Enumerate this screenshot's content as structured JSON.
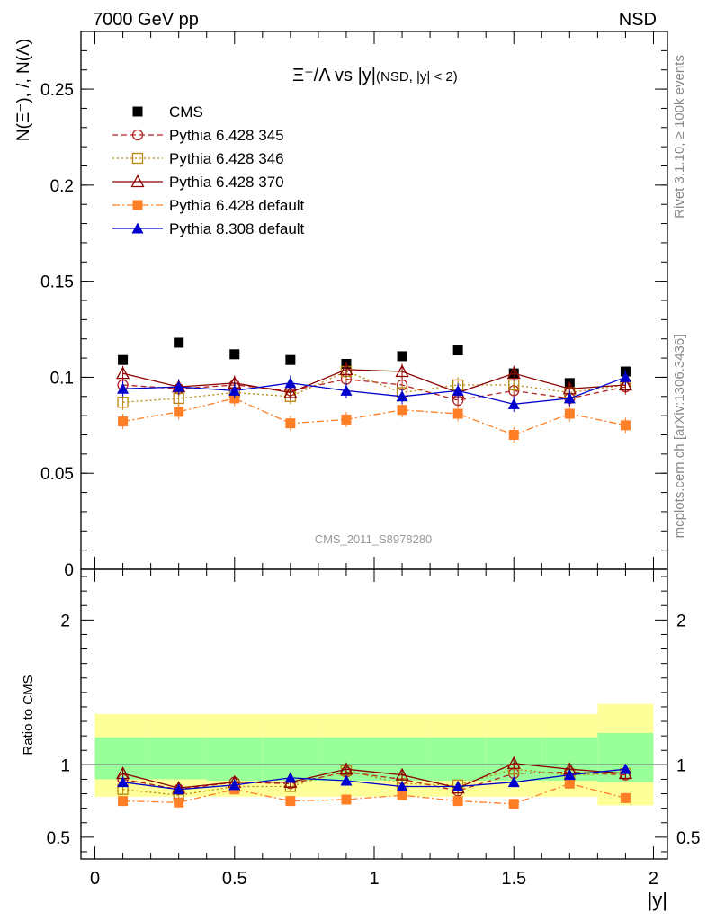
{
  "header": {
    "left": "7000 GeV pp",
    "right": "NSD"
  },
  "side_labels": {
    "rivet": "Rivet 3.1.10, ≥ 100k events",
    "mcplots": "mcplots.cern.ch [arXiv:1306.3436]"
  },
  "chart_data": [
    {
      "type": "scatter",
      "title_main": "Ξ⁻/Λ vs |y|",
      "title_sub": "(NSD, |y| < 2)",
      "ylabel": "N(Ξ⁻), /, N(Λ)",
      "watermark": "CMS_2011_S8978280",
      "xlim": [
        -0.05,
        2.05
      ],
      "ylim": [
        0,
        0.28
      ],
      "yticks": [
        0,
        0.05,
        0.1,
        0.15,
        0.2,
        0.25
      ],
      "ytick_labels": [
        "0",
        "0.05",
        "0.1",
        "0.15",
        "0.2",
        "0.25"
      ],
      "x": [
        0.1,
        0.3,
        0.5,
        0.7,
        0.9,
        1.1,
        1.3,
        1.5,
        1.7,
        1.9
      ],
      "series": [
        {
          "name": "CMS",
          "color": "#000000",
          "marker": "filled-square",
          "line": "none",
          "values": [
            0.109,
            0.118,
            0.112,
            0.109,
            0.107,
            0.111,
            0.114,
            0.102,
            0.097,
            0.103
          ],
          "err": [
            0,
            0,
            0,
            0,
            0,
            0,
            0,
            0,
            0,
            0
          ]
        },
        {
          "name": "Pythia 6.428 345",
          "color": "#b22222",
          "marker": "open-circle",
          "line": "dashed",
          "values": [
            0.096,
            0.094,
            0.096,
            0.093,
            0.099,
            0.096,
            0.088,
            0.093,
            0.089,
            0.095
          ],
          "err": [
            0.004,
            0.004,
            0.004,
            0.004,
            0.004,
            0.004,
            0.004,
            0.004,
            0.004,
            0.004
          ]
        },
        {
          "name": "Pythia 6.428 346",
          "color": "#b8860b",
          "marker": "open-square",
          "line": "dotted",
          "values": [
            0.087,
            0.089,
            0.092,
            0.09,
            0.103,
            0.092,
            0.096,
            0.096,
            0.092,
            0.096
          ],
          "err": [
            0.004,
            0.004,
            0.004,
            0.004,
            0.004,
            0.004,
            0.004,
            0.004,
            0.004,
            0.004
          ]
        },
        {
          "name": "Pythia 6.428 370",
          "color": "#8b0000",
          "marker": "open-triangle",
          "line": "solid",
          "values": [
            0.102,
            0.095,
            0.097,
            0.092,
            0.104,
            0.103,
            0.092,
            0.102,
            0.094,
            0.096
          ],
          "err": [
            0.004,
            0.004,
            0.004,
            0.004,
            0.004,
            0.004,
            0.004,
            0.004,
            0.004,
            0.004
          ]
        },
        {
          "name": "Pythia 6.428 default",
          "color": "#ff7f27",
          "marker": "filled-square",
          "line": "dashdot",
          "values": [
            0.077,
            0.082,
            0.089,
            0.076,
            0.078,
            0.083,
            0.081,
            0.07,
            0.081,
            0.075
          ],
          "err": [
            0.004,
            0.004,
            0.004,
            0.004,
            0.004,
            0.004,
            0.004,
            0.004,
            0.004,
            0.004
          ]
        },
        {
          "name": "Pythia 8.308 default",
          "color": "#0000cc",
          "marker": "filled-triangle",
          "line": "solid",
          "values": [
            0.094,
            0.095,
            0.093,
            0.097,
            0.093,
            0.09,
            0.093,
            0.086,
            0.089,
            0.1
          ],
          "err": [
            0.004,
            0.004,
            0.004,
            0.004,
            0.004,
            0.004,
            0.004,
            0.004,
            0.004,
            0.004
          ]
        }
      ]
    },
    {
      "type": "scatter",
      "ylabel": "Ratio to CMS",
      "xlabel": "|y|",
      "xlim": [
        -0.05,
        2.05
      ],
      "ylim": [
        0.35,
        2.35
      ],
      "xticks": [
        0,
        0.5,
        1,
        1.5,
        2
      ],
      "xtick_labels": [
        "0",
        "0.5",
        "1",
        "1.5",
        "2"
      ],
      "yticks": [
        0.5,
        1,
        2
      ],
      "ytick_labels": [
        "0.5",
        "1",
        "2"
      ],
      "reference_line": 1,
      "bands": {
        "bin_edges": [
          0.0,
          0.2,
          0.4,
          0.6,
          0.8,
          1.0,
          1.2,
          1.4,
          1.6,
          1.8,
          2.0
        ],
        "green_low": [
          0.9,
          0.9,
          0.89,
          0.89,
          0.89,
          0.89,
          0.89,
          0.89,
          0.89,
          0.88
        ],
        "green_high": [
          1.19,
          1.19,
          1.19,
          1.19,
          1.19,
          1.19,
          1.19,
          1.19,
          1.19,
          1.22
        ],
        "yellow_low": [
          0.78,
          0.78,
          0.78,
          0.78,
          0.78,
          0.78,
          0.78,
          0.78,
          0.78,
          0.72
        ],
        "yellow_high": [
          1.35,
          1.35,
          1.35,
          1.35,
          1.35,
          1.35,
          1.35,
          1.35,
          1.35,
          1.42
        ]
      },
      "x": [
        0.1,
        0.3,
        0.5,
        0.7,
        0.9,
        1.1,
        1.3,
        1.5,
        1.7,
        1.9
      ],
      "series": [
        {
          "name": "Pythia 6.428 345",
          "color": "#b22222",
          "marker": "open-circle",
          "line": "dashed",
          "values": [
            0.9,
            0.83,
            0.88,
            0.87,
            0.95,
            0.9,
            0.82,
            0.94,
            0.95,
            0.93
          ],
          "err": [
            0.035,
            0.035,
            0.035,
            0.035,
            0.035,
            0.035,
            0.035,
            0.035,
            0.035,
            0.035
          ]
        },
        {
          "name": "Pythia 6.428 346",
          "color": "#b8860b",
          "marker": "open-square",
          "line": "dotted",
          "values": [
            0.83,
            0.79,
            0.85,
            0.85,
            0.96,
            0.87,
            0.86,
            0.97,
            0.93,
            0.94
          ],
          "err": [
            0.035,
            0.035,
            0.035,
            0.035,
            0.035,
            0.035,
            0.035,
            0.035,
            0.035,
            0.035
          ]
        },
        {
          "name": "Pythia 6.428 370",
          "color": "#8b0000",
          "marker": "open-triangle",
          "line": "solid",
          "values": [
            0.94,
            0.84,
            0.88,
            0.88,
            0.97,
            0.93,
            0.84,
            1.01,
            0.97,
            0.94
          ],
          "err": [
            0.035,
            0.035,
            0.035,
            0.035,
            0.035,
            0.035,
            0.035,
            0.035,
            0.035,
            0.035
          ]
        },
        {
          "name": "Pythia 6.428 default",
          "color": "#ff7f27",
          "marker": "filled-square",
          "line": "dashdot",
          "values": [
            0.75,
            0.74,
            0.83,
            0.75,
            0.76,
            0.79,
            0.75,
            0.73,
            0.87,
            0.77
          ],
          "err": [
            0.035,
            0.035,
            0.035,
            0.035,
            0.035,
            0.035,
            0.035,
            0.035,
            0.035,
            0.035
          ]
        },
        {
          "name": "Pythia 8.308 default",
          "color": "#0000cc",
          "marker": "filled-triangle",
          "line": "solid",
          "values": [
            0.88,
            0.83,
            0.86,
            0.91,
            0.89,
            0.85,
            0.85,
            0.88,
            0.93,
            0.97
          ],
          "err": [
            0.035,
            0.035,
            0.035,
            0.035,
            0.035,
            0.035,
            0.035,
            0.035,
            0.035,
            0.035
          ]
        }
      ]
    }
  ]
}
